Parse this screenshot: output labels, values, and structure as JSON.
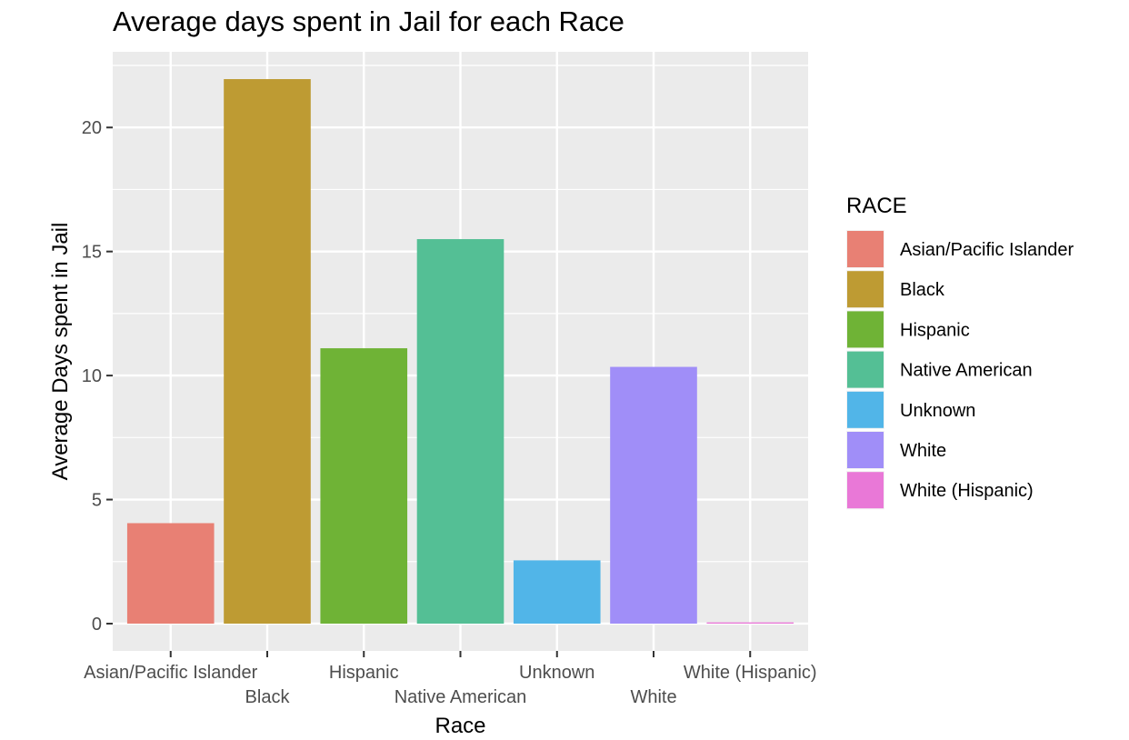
{
  "chart_data": {
    "type": "bar",
    "title": "Average days spent in Jail for each Race",
    "xlabel": "Race",
    "ylabel": "Average Days spent in Jail",
    "categories": [
      "Asian/Pacific Islander",
      "Black",
      "Hispanic",
      "Native American",
      "Unknown",
      "White",
      "White (Hispanic)"
    ],
    "values": [
      4.05,
      21.95,
      11.1,
      15.5,
      2.55,
      10.35,
      0.05
    ],
    "colors": [
      "#E88074",
      "#BE9B33",
      "#6FB336",
      "#54BF95",
      "#51B5E8",
      "#A08EF8",
      "#E978D7"
    ],
    "ylim": [
      -1.1,
      23.05
    ],
    "yticks": [
      0,
      5,
      10,
      15,
      20
    ],
    "grid": true,
    "panel_background": "#EBEBEB",
    "legend": {
      "title": "RACE",
      "position": "right",
      "entries": [
        "Asian/Pacific Islander",
        "Black",
        "Hispanic",
        "Native American",
        "Unknown",
        "White",
        "White (Hispanic)"
      ]
    }
  }
}
